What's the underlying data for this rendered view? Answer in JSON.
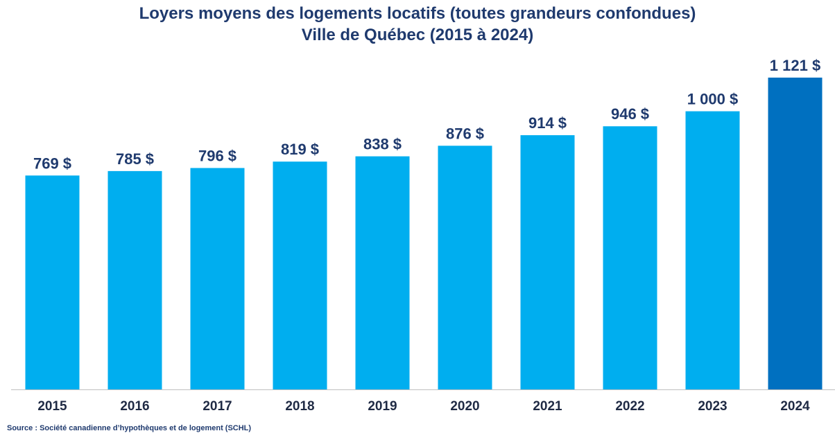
{
  "chart_data": {
    "type": "bar",
    "title": "Loyers moyens des logements locatifs (toutes grandeurs confondues)",
    "subtitle": "Ville de Québec (2015 à 2024)",
    "categories": [
      "2015",
      "2016",
      "2017",
      "2018",
      "2019",
      "2020",
      "2021",
      "2022",
      "2023",
      "2024"
    ],
    "values": [
      769,
      785,
      796,
      819,
      838,
      876,
      914,
      946,
      1000,
      1121
    ],
    "value_labels": [
      "769 $",
      "785 $",
      "796 $",
      "819 $",
      "838 $",
      "876 $",
      "914 $",
      "946 $",
      "1 000 $",
      "1 121 $"
    ],
    "xlabel": "",
    "ylabel": "",
    "ylim": [
      0,
      1121
    ],
    "grid": false,
    "colors": {
      "bar": "#00aeef",
      "highlight": "#0070c0",
      "text": "#1f3a6e"
    },
    "highlight_index": 9
  },
  "source": "Source : Société canadienne d’hypothèques et de logement (SCHL)"
}
